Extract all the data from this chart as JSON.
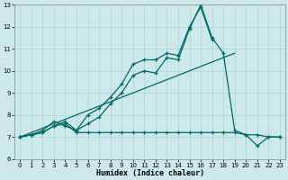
{
  "xlabel": "Humidex (Indice chaleur)",
  "bg_color": "#cce8e8",
  "grid_color": "#aad4d4",
  "line_color": "#006868",
  "xlim": [
    -0.5,
    23.5
  ],
  "ylim": [
    6,
    13
  ],
  "xticks": [
    0,
    1,
    2,
    3,
    4,
    5,
    6,
    7,
    8,
    9,
    10,
    11,
    12,
    13,
    14,
    15,
    16,
    17,
    18,
    19,
    20,
    21,
    22,
    23
  ],
  "yticks": [
    6,
    7,
    8,
    9,
    10,
    11,
    12,
    13
  ],
  "series": [
    {
      "x": [
        0,
        1,
        2,
        3,
        4,
        5,
        6,
        7,
        8,
        9,
        10,
        11,
        12,
        13,
        14,
        15,
        16,
        17,
        18,
        19,
        20,
        21,
        22,
        23
      ],
      "y": [
        7.0,
        7.1,
        7.2,
        7.5,
        7.6,
        7.2,
        7.2,
        7.2,
        7.2,
        7.2,
        7.2,
        7.2,
        7.2,
        7.2,
        7.2,
        7.2,
        7.2,
        7.2,
        7.2,
        7.2,
        7.1,
        7.1,
        7.0,
        7.0
      ]
    },
    {
      "x": [
        0,
        1,
        2,
        3,
        4,
        5,
        6,
        7,
        8,
        9,
        10,
        11,
        12,
        13,
        14,
        15,
        16,
        17,
        18,
        19,
        20,
        21,
        22,
        23
      ],
      "y": [
        7.0,
        7.1,
        7.2,
        7.5,
        7.7,
        7.3,
        7.6,
        7.9,
        8.5,
        9.0,
        9.8,
        10.0,
        9.9,
        10.6,
        10.5,
        11.9,
        13.0,
        11.5,
        10.8,
        7.3,
        7.1,
        6.6,
        7.0,
        7.0
      ]
    },
    {
      "x": [
        0,
        1,
        2,
        3,
        4,
        5,
        6,
        7,
        8,
        9,
        10,
        11,
        12,
        13,
        14,
        15,
        16,
        17
      ],
      "y": [
        7.0,
        7.1,
        7.3,
        7.7,
        7.5,
        7.3,
        8.0,
        8.3,
        8.8,
        9.4,
        10.3,
        10.5,
        10.5,
        10.8,
        10.7,
        12.0,
        12.9,
        11.4
      ]
    },
    {
      "x": [
        0,
        19
      ],
      "y": [
        7.0,
        10.8
      ]
    }
  ]
}
